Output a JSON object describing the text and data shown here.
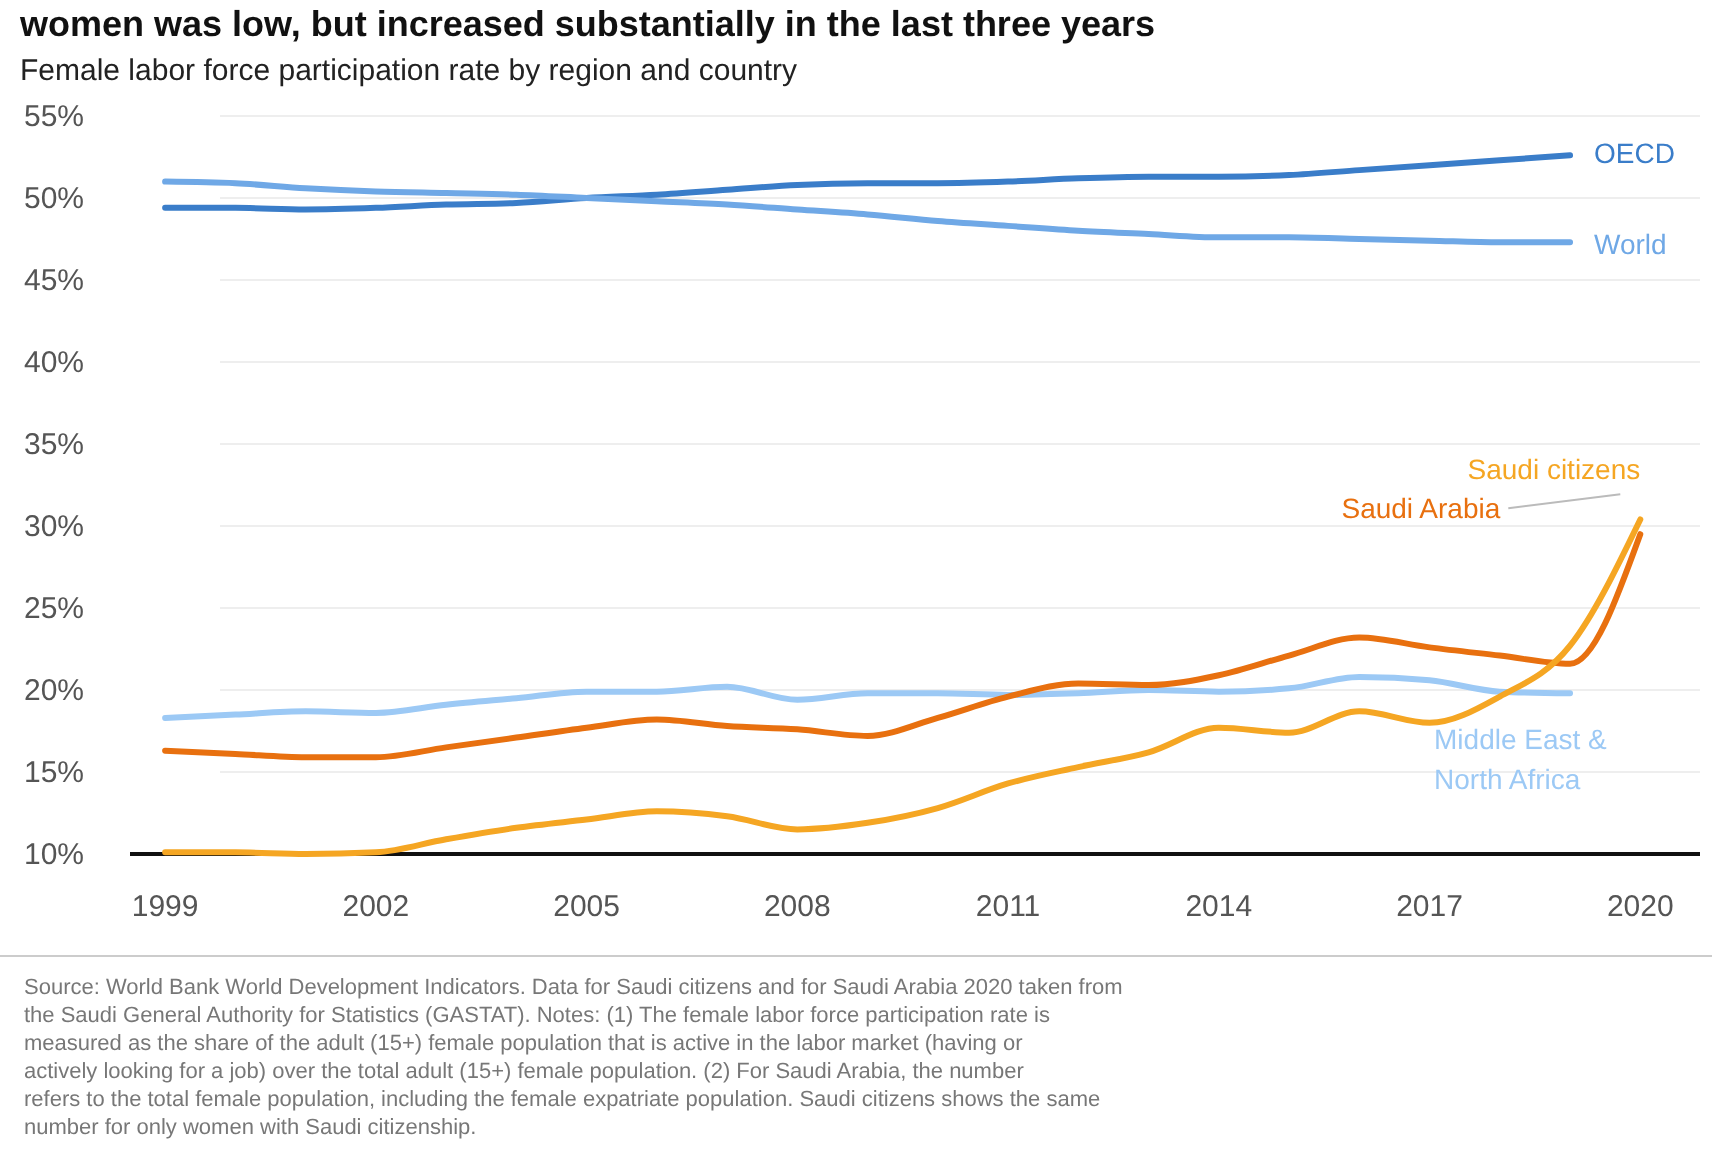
{
  "chart_data": {
    "type": "line",
    "title": "women was low, but increased substantially in the last three years",
    "subtitle": "Female labor force participation rate by region and country",
    "x": [
      1999,
      2000,
      2001,
      2002,
      2003,
      2004,
      2005,
      2006,
      2007,
      2008,
      2009,
      2010,
      2011,
      2012,
      2013,
      2014,
      2015,
      2016,
      2017,
      2018,
      2019,
      2020
    ],
    "xlim": [
      1998.5,
      2020.85
    ],
    "xticks": [
      1999,
      2002,
      2005,
      2008,
      2011,
      2014,
      2017,
      2020
    ],
    "ylim": [
      10,
      55
    ],
    "yticks": [
      {
        "value": 10,
        "label": "10%"
      },
      {
        "value": 15,
        "label": "15%"
      },
      {
        "value": 20,
        "label": "20%"
      },
      {
        "value": 25,
        "label": "25%"
      },
      {
        "value": 30,
        "label": "30%"
      },
      {
        "value": 35,
        "label": "35%"
      },
      {
        "value": 40,
        "label": "40%"
      },
      {
        "value": 45,
        "label": "45%"
      },
      {
        "value": 50,
        "label": "50%"
      },
      {
        "value": 55,
        "label": "55%"
      }
    ],
    "grid": "y",
    "line_style": "solid",
    "marker": "none",
    "series": [
      {
        "name": "OECD",
        "color": "#3a7dc9",
        "values": [
          49.4,
          49.4,
          49.3,
          49.4,
          49.6,
          49.7,
          50.0,
          50.2,
          50.5,
          50.8,
          50.9,
          50.9,
          51.0,
          51.2,
          51.3,
          51.3,
          51.4,
          51.7,
          52.0,
          52.3,
          52.6,
          null
        ]
      },
      {
        "name": "World",
        "color": "#6fa8e6",
        "values": [
          51.0,
          50.9,
          50.6,
          50.4,
          50.3,
          50.2,
          50.0,
          49.8,
          49.6,
          49.3,
          49.0,
          48.6,
          48.3,
          48.0,
          47.8,
          47.6,
          47.6,
          47.5,
          47.4,
          47.3,
          47.3,
          null
        ]
      },
      {
        "name": "Middle East & North Africa",
        "color": "#9cc9f5",
        "values": [
          18.3,
          18.5,
          18.7,
          18.6,
          19.1,
          19.5,
          19.9,
          19.9,
          20.2,
          19.4,
          19.8,
          19.8,
          19.7,
          19.8,
          20.0,
          19.9,
          20.1,
          20.8,
          20.6,
          19.9,
          19.8,
          null
        ]
      },
      {
        "name": "Saudi Arabia",
        "color": "#e8700f",
        "values": [
          16.3,
          16.1,
          15.9,
          15.9,
          16.5,
          17.1,
          17.7,
          18.2,
          17.8,
          17.6,
          17.2,
          18.3,
          19.6,
          20.4,
          20.3,
          20.9,
          22.1,
          23.2,
          22.6,
          22.1,
          21.6,
          29.5
        ]
      },
      {
        "name": "Saudi citizens",
        "color": "#f5a623",
        "values": [
          10.1,
          10.1,
          10.0,
          10.1,
          10.9,
          11.6,
          12.1,
          12.6,
          12.3,
          11.5,
          11.9,
          12.8,
          14.3,
          15.3,
          16.2,
          17.7,
          17.4,
          18.7,
          18.0,
          19.6,
          22.7,
          30.4
        ]
      }
    ],
    "annotations": [
      "Source: World Bank World Development Indicators. Data for Saudi citizens and for Saudi Arabia 2020 taken from the Saudi General Authority for Statistics (GASTAT). Notes: (1) The female labor force participation rate is measured as the share of the adult (15+) female population that is active in the labor market (having or actively looking for a job) over the total adult (15+) female population. (2) For Saudi Arabia, the number refers to the total female population, including the female expatriate population. Saudi citizens shows the same number for only women with Saudi citizenship."
    ]
  }
}
